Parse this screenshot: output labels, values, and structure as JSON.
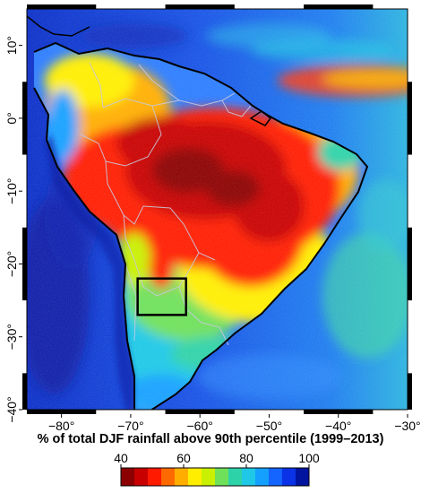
{
  "map": {
    "title": "% of total DJF rainfall above 90th percentile (1999–2013)",
    "lon_ticks": [
      "−80°",
      "−70°",
      "−60°",
      "−50°",
      "−40°",
      "−30°"
    ],
    "lat_ticks": [
      "10°",
      "0°",
      "−10°",
      "−20°",
      "−30°",
      "−40°"
    ],
    "lon_range": [
      -85,
      -30
    ],
    "lat_range": [
      -40,
      15
    ],
    "highlight_box": {
      "lon": [
        -69,
        -62
      ],
      "lat": [
        -27,
        -22
      ]
    }
  },
  "colorbar": {
    "labels": [
      "40",
      "60",
      "80",
      "100"
    ],
    "colors": [
      "#8b0000",
      "#c80000",
      "#ff1a00",
      "#ff6a00",
      "#ffae00",
      "#ffee00",
      "#c8f000",
      "#6ee05a",
      "#2ed2a8",
      "#1ec8e6",
      "#14a0ff",
      "#1464ff",
      "#0a32e6",
      "#0014a0"
    ],
    "range": [
      40,
      100
    ]
  },
  "legend_colors": {
    "ocean": "#1040d8",
    "amazon": "#c80a00",
    "coastline": "#000000",
    "borders": "#c8c8dc"
  }
}
